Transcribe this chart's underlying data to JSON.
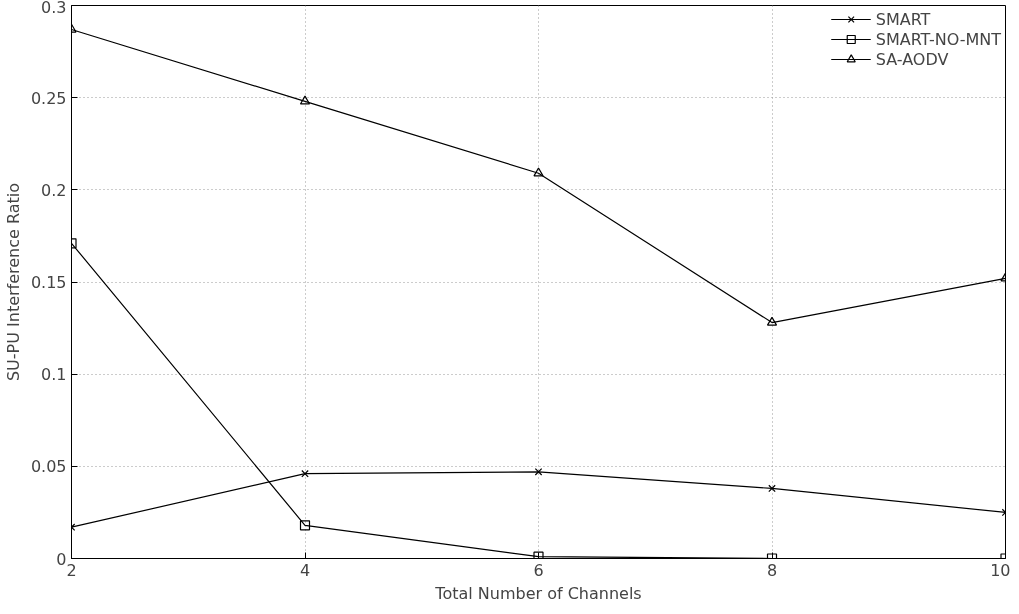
{
  "chart_data": {
    "type": "line",
    "xlabel": "Total Number of Channels",
    "ylabel": "SU-PU Interference Ratio",
    "x": [
      2,
      4,
      6,
      8,
      10
    ],
    "series": [
      {
        "name": "SMART",
        "color": "#000000",
        "marker": "cross",
        "values": [
          0.017,
          0.046,
          0.047,
          0.038,
          0.025
        ]
      },
      {
        "name": "SMART-NO-MNT",
        "color": "#000000",
        "marker": "square",
        "values": [
          0.171,
          0.018,
          0.001,
          0,
          0
        ]
      },
      {
        "name": "SA-AODV",
        "color": "#000000",
        "marker": "triangle",
        "values": [
          0.287,
          0.248,
          0.209,
          0.128,
          0.152
        ]
      }
    ],
    "xlim": [
      2,
      10
    ],
    "xticks": [
      2,
      4,
      6,
      8,
      10
    ],
    "ylim": [
      0,
      0.3
    ],
    "yticks": [
      0,
      0.05,
      0.1,
      0.15,
      0.2,
      0.25,
      0.3
    ],
    "grid": true,
    "legend": "top right",
    "line_style": "solid"
  }
}
